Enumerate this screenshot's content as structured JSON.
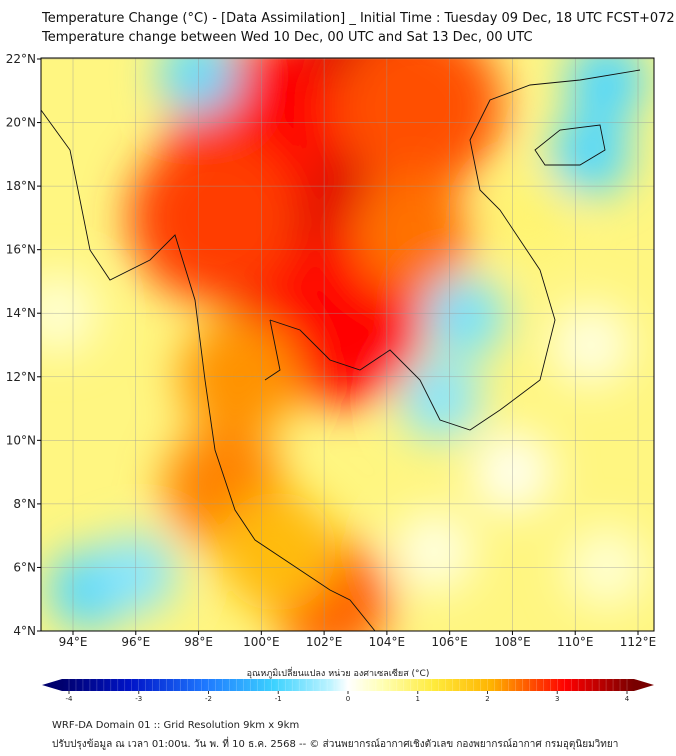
{
  "header": {
    "title": "Temperature Change (°C) - [Data Assimilation] _ Initial Time : Tuesday 09 Dec, 18 UTC FCST+072",
    "subtitle": "Temperature change between Wed 10 Dec, 00 UTC and Sat 13 Dec, 00 UTC"
  },
  "map": {
    "lon_range": [
      93,
      112.5
    ],
    "lat_range": [
      4,
      22.2
    ],
    "lon_ticks": [
      {
        "v": 94,
        "label": "94°E"
      },
      {
        "v": 96,
        "label": "96°E"
      },
      {
        "v": 98,
        "label": "98°E"
      },
      {
        "v": 100,
        "label": "100°E"
      },
      {
        "v": 102,
        "label": "102°E"
      },
      {
        "v": 104,
        "label": "104°E"
      },
      {
        "v": 106,
        "label": "106°E"
      },
      {
        "v": 108,
        "label": "108°E"
      },
      {
        "v": 110,
        "label": "110°E"
      },
      {
        "v": 112,
        "label": "112°E"
      }
    ],
    "lat_ticks": [
      {
        "v": 4,
        "label": "4°N"
      },
      {
        "v": 6,
        "label": "6°N"
      },
      {
        "v": 8,
        "label": "8°N"
      },
      {
        "v": 10,
        "label": "10°N"
      },
      {
        "v": 12,
        "label": "12°N"
      },
      {
        "v": 14,
        "label": "14°N"
      },
      {
        "v": 16,
        "label": "16°N"
      },
      {
        "v": 18,
        "label": "18°N"
      },
      {
        "v": 20,
        "label": "20°N"
      },
      {
        "v": 22,
        "label": "22°N"
      }
    ],
    "background_value": 0.8,
    "field": [
      {
        "lon": 101.5,
        "lat": 15.3,
        "value": 3.3
      },
      {
        "lon": 100.3,
        "lat": 16.5,
        "value": 3.2
      },
      {
        "lon": 102.3,
        "lat": 19.5,
        "value": 3.2
      },
      {
        "lon": 103.5,
        "lat": 21.5,
        "value": 3.2
      },
      {
        "lon": 99.8,
        "lat": 20,
        "value": 3.0
      },
      {
        "lon": 102.5,
        "lat": 13.8,
        "value": 3.0
      },
      {
        "lon": 98.5,
        "lat": 17,
        "value": 2.7
      },
      {
        "lon": 105,
        "lat": 20.5,
        "value": 2.6
      },
      {
        "lon": 104.8,
        "lat": 16.5,
        "value": 2.4
      },
      {
        "lon": 99.3,
        "lat": 12,
        "value": 2.2
      },
      {
        "lon": 98.8,
        "lat": 8.5,
        "value": 2.3
      },
      {
        "lon": 102.2,
        "lat": 5,
        "value": 2.5
      },
      {
        "lon": 100.5,
        "lat": 6.5,
        "value": 1.9
      },
      {
        "lon": 98,
        "lat": 21.5,
        "value": -0.8
      },
      {
        "lon": 111,
        "lat": 21.3,
        "value": -0.9
      },
      {
        "lon": 110.5,
        "lat": 19,
        "value": -0.9
      },
      {
        "lon": 106.5,
        "lat": 13.9,
        "value": -0.7
      },
      {
        "lon": 105.7,
        "lat": 11.3,
        "value": -0.6
      },
      {
        "lon": 94.5,
        "lat": 5.3,
        "value": -0.9
      },
      {
        "lon": 96,
        "lat": 5.8,
        "value": -0.6
      },
      {
        "lon": 108,
        "lat": 9,
        "value": 0.1
      },
      {
        "lon": 110.5,
        "lat": 13,
        "value": 0.2
      },
      {
        "lon": 105.5,
        "lat": 6.5,
        "value": 0.2
      },
      {
        "lon": 111,
        "lat": 6,
        "value": 0.3
      },
      {
        "lon": 93.5,
        "lat": 14,
        "value": 0.3
      },
      {
        "lon": 108.5,
        "lat": 17,
        "value": 0.9
      }
    ]
  },
  "colorbar": {
    "label": "อุณหภูมิเปลี่ยนแปลง หน่วย องศาเซลเซียส (°C)",
    "ticks": [
      "-4",
      "-3",
      "-2",
      "-1",
      "0",
      "1",
      "2",
      "3",
      "4"
    ],
    "min": -4,
    "max": 4
  },
  "footer": {
    "line1": "WRF-DA Domain 01 :: Grid Resolution 9km x 9km",
    "line2": "ปรับปรุงข้อมูล ณ เวลา 01:00น. วัน พ. ที่ 10 ธ.ค. 2568 -- © ส่วนพยากรณ์อากาศเชิงตัวเลข กองพยากรณ์อากาศ กรมอุตุนิยมวิทยา"
  }
}
